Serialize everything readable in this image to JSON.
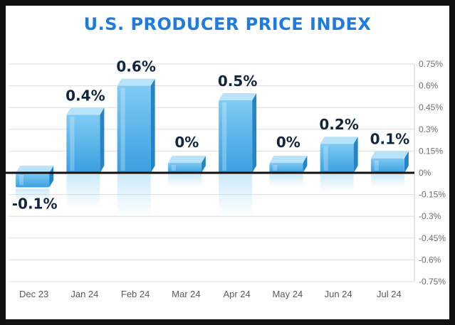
{
  "chart_data": {
    "type": "bar",
    "title": "U.S. PRODUCER PRICE INDEX",
    "categories": [
      "Dec 23",
      "Jan 24",
      "Feb 24",
      "Mar 24",
      "Apr 24",
      "May 24",
      "Jun 24",
      "Jul 24"
    ],
    "values": [
      -0.1,
      0.4,
      0.6,
      0,
      0.5,
      0,
      0.2,
      0.1
    ],
    "data_labels": [
      "-0.1%",
      "0.4%",
      "0.6%",
      "0%",
      "0.5%",
      "0%",
      "0.2%",
      "0.1%"
    ],
    "ylim": [
      -0.75,
      0.75
    ],
    "yticks": [
      0.75,
      0.6,
      0.45,
      0.3,
      0.15,
      0,
      -0.15,
      -0.3,
      -0.45,
      -0.6,
      -0.75
    ],
    "ytick_labels": [
      "0.75%",
      "0.6%",
      "0.45%",
      "0.3%",
      "0.15%",
      "0%",
      "-0.15%",
      "-0.3%",
      "-0.45%",
      "-0.6%",
      "-0.75%"
    ],
    "y_axis_side": "right",
    "grid": true,
    "xlabel": "",
    "ylabel": "",
    "colors": {
      "title": "#1e7be0",
      "bar_front_top": "#7fcbf4",
      "bar_front_bottom": "#3a9fe0",
      "bar_side": "#2584c8",
      "bar_top": "#b8e4fb",
      "zero_line": "#111111",
      "grid": "#dddddd",
      "label": "#10253f"
    }
  }
}
